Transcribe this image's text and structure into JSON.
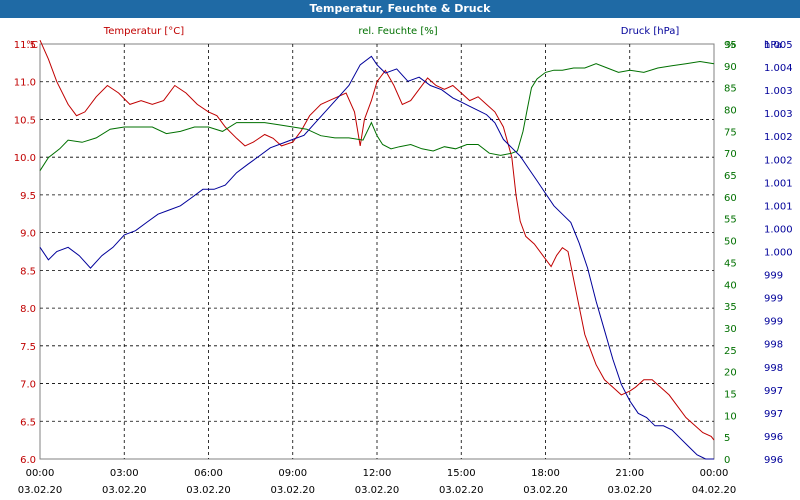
{
  "window": {
    "title": "Temperatur, Feuchte & Druck"
  },
  "colors": {
    "temperature": "#c00000",
    "humidity": "#007000",
    "pressure": "#00009a",
    "title_bar": "#1f6aa5"
  },
  "chart_data": {
    "type": "line",
    "grid": "dashed",
    "legend": "top",
    "x_ticks": [
      {
        "time": "00:00",
        "date": "03.02.20"
      },
      {
        "time": "03:00",
        "date": "03.02.20"
      },
      {
        "time": "06:00",
        "date": "03.02.20"
      },
      {
        "time": "09:00",
        "date": "03.02.20"
      },
      {
        "time": "12:00",
        "date": "03.02.20"
      },
      {
        "time": "15:00",
        "date": "03.02.20"
      },
      {
        "time": "18:00",
        "date": "03.02.20"
      },
      {
        "time": "21:00",
        "date": "03.02.20"
      },
      {
        "time": "00:00",
        "date": "04.02.20"
      }
    ],
    "x_range_hours": [
      0,
      24
    ],
    "axes": {
      "temperature": {
        "unit": "°C",
        "min": 6.0,
        "max": 11.5,
        "ticks": [
          "6.0",
          "6.5",
          "7.0",
          "7.5",
          "8.0",
          "8.5",
          "9.0",
          "9.5",
          "10.0",
          "10.5",
          "11.0",
          "11.5"
        ]
      },
      "humidity": {
        "unit": "%",
        "min": 0,
        "max": 95,
        "ticks": [
          "0",
          "5",
          "10",
          "15",
          "20",
          "25",
          "30",
          "35",
          "40",
          "45",
          "50",
          "55",
          "60",
          "65",
          "70",
          "75",
          "80",
          "85",
          "90",
          "95"
        ]
      },
      "pressure": {
        "unit": "hPa",
        "min": 995.5,
        "max": 1005.5,
        "ticks": [
          "996",
          "996",
          "997",
          "997",
          "998",
          "998",
          "999",
          "999",
          "999",
          "1.000",
          "1.000",
          "1.001",
          "1.001",
          "1.002",
          "1.002",
          "1.003",
          "1.003",
          "1.004",
          "1.005"
        ]
      }
    },
    "series": [
      {
        "key": "temperature",
        "name": "Temperatur [°C]",
        "axis": "temperature",
        "x": [
          0,
          0.3,
          0.6,
          1,
          1.3,
          1.6,
          2,
          2.4,
          2.8,
          3.2,
          3.6,
          4,
          4.4,
          4.8,
          5.2,
          5.6,
          6,
          6.3,
          6.6,
          7,
          7.3,
          7.6,
          8,
          8.3,
          8.6,
          9,
          9.3,
          9.6,
          10,
          10.3,
          10.6,
          10.9,
          11.2,
          11.4,
          11.55,
          11.8,
          12,
          12.3,
          12.6,
          12.9,
          13.2,
          13.5,
          13.8,
          14.1,
          14.4,
          14.7,
          15,
          15.3,
          15.6,
          15.9,
          16.2,
          16.5,
          16.8,
          16.95,
          17.1,
          17.3,
          17.6,
          17.9,
          18.2,
          18.4,
          18.6,
          18.8,
          19.1,
          19.4,
          19.6,
          19.8,
          20.1,
          20.4,
          20.7,
          21,
          21.2,
          21.5,
          21.8,
          22.1,
          22.4,
          22.7,
          23,
          23.3,
          23.6,
          23.9,
          24
        ],
        "y": [
          11.55,
          11.3,
          11.0,
          10.7,
          10.55,
          10.6,
          10.8,
          10.95,
          10.85,
          10.7,
          10.75,
          10.7,
          10.75,
          10.95,
          10.85,
          10.7,
          10.6,
          10.55,
          10.4,
          10.25,
          10.15,
          10.2,
          10.3,
          10.25,
          10.15,
          10.2,
          10.35,
          10.55,
          10.7,
          10.75,
          10.8,
          10.85,
          10.6,
          10.15,
          10.5,
          10.75,
          11.0,
          11.15,
          10.95,
          10.7,
          10.75,
          10.9,
          11.05,
          10.95,
          10.9,
          10.95,
          10.85,
          10.75,
          10.8,
          10.7,
          10.6,
          10.4,
          10.0,
          9.5,
          9.15,
          8.95,
          8.85,
          8.7,
          8.55,
          8.7,
          8.8,
          8.75,
          8.2,
          7.65,
          7.45,
          7.25,
          7.05,
          6.95,
          6.85,
          6.9,
          6.95,
          7.05,
          7.05,
          6.95,
          6.85,
          6.7,
          6.55,
          6.45,
          6.35,
          6.3,
          6.25
        ]
      },
      {
        "key": "humidity",
        "name": "rel. Feuchte [%]",
        "axis": "humidity",
        "x": [
          0,
          0.3,
          0.7,
          1,
          1.5,
          2,
          2.5,
          3,
          3.5,
          4,
          4.5,
          5,
          5.5,
          6,
          6.5,
          7,
          7.5,
          8,
          8.5,
          9,
          9.5,
          10,
          10.5,
          11,
          11.5,
          11.8,
          12,
          12.2,
          12.5,
          12.8,
          13.2,
          13.6,
          14,
          14.4,
          14.8,
          15.2,
          15.6,
          16,
          16.4,
          16.8,
          17,
          17.2,
          17.35,
          17.5,
          17.7,
          18,
          18.3,
          18.6,
          19,
          19.4,
          19.8,
          20.2,
          20.6,
          21,
          21.5,
          22,
          22.5,
          23,
          23.5,
          24
        ],
        "y": [
          66,
          69,
          71,
          73,
          72.5,
          73.5,
          75.5,
          76,
          76,
          76,
          74.5,
          75,
          76,
          76,
          75,
          77,
          77,
          77,
          76.5,
          76,
          75.5,
          74,
          73.5,
          73.5,
          73,
          77,
          74,
          72,
          71,
          71.5,
          72,
          71,
          70.5,
          71.5,
          71,
          72,
          72,
          70,
          69.5,
          70,
          70.5,
          75,
          80,
          85,
          87,
          88.5,
          89,
          89,
          89.5,
          89.5,
          90.5,
          89.5,
          88.5,
          89,
          88.5,
          89.5,
          90,
          90.5,
          91,
          90.5
        ]
      },
      {
        "key": "pressure",
        "name": "Druck [hPa]",
        "axis": "pressure",
        "x": [
          0,
          0.3,
          0.6,
          1,
          1.4,
          1.8,
          2.2,
          2.6,
          3,
          3.4,
          3.8,
          4.2,
          4.6,
          5,
          5.4,
          5.8,
          6.2,
          6.6,
          7,
          7.4,
          7.8,
          8.2,
          8.6,
          9,
          9.4,
          9.8,
          10.2,
          10.6,
          11,
          11.4,
          11.8,
          12,
          12.3,
          12.7,
          13.1,
          13.5,
          13.9,
          14.3,
          14.7,
          15,
          15.3,
          15.6,
          15.9,
          16.2,
          16.5,
          16.8,
          17.1,
          17.4,
          17.7,
          18,
          18.3,
          18.6,
          18.9,
          19.2,
          19.5,
          19.8,
          20.1,
          20.4,
          20.7,
          21,
          21.3,
          21.6,
          21.9,
          22.2,
          22.5,
          22.8,
          23.1,
          23.4,
          23.7,
          24
        ],
        "y": [
          1000.6,
          1000.3,
          1000.5,
          1000.6,
          1000.4,
          1000.1,
          1000.4,
          1000.6,
          1000.9,
          1001.0,
          1001.2,
          1001.4,
          1001.5,
          1001.6,
          1001.8,
          1002.0,
          1002.0,
          1002.1,
          1002.4,
          1002.6,
          1002.8,
          1003.0,
          1003.1,
          1003.2,
          1003.3,
          1003.6,
          1003.9,
          1004.2,
          1004.5,
          1005.0,
          1005.2,
          1005.0,
          1004.8,
          1004.9,
          1004.6,
          1004.7,
          1004.5,
          1004.4,
          1004.2,
          1004.1,
          1004.0,
          1003.9,
          1003.8,
          1003.6,
          1003.2,
          1003.0,
          1002.8,
          1002.5,
          1002.2,
          1001.9,
          1001.6,
          1001.4,
          1001.2,
          1000.7,
          1000.1,
          999.3,
          998.6,
          997.9,
          997.3,
          996.9,
          996.6,
          996.5,
          996.3,
          996.3,
          996.2,
          996.0,
          995.8,
          995.6,
          995.5,
          995.5
        ]
      }
    ]
  }
}
